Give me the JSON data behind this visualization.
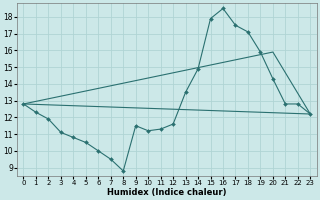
{
  "xlabel": "Humidex (Indice chaleur)",
  "background_color": "#cce8e8",
  "grid_color": "#b0d4d4",
  "line_color": "#2a7070",
  "xlim": [
    -0.5,
    23.5
  ],
  "ylim": [
    8.5,
    18.8
  ],
  "yticks": [
    9,
    10,
    11,
    12,
    13,
    14,
    15,
    16,
    17,
    18
  ],
  "xticks": [
    0,
    1,
    2,
    3,
    4,
    5,
    6,
    7,
    8,
    9,
    10,
    11,
    12,
    13,
    14,
    15,
    16,
    17,
    18,
    19,
    20,
    21,
    22,
    23
  ],
  "line1_x": [
    0,
    1,
    2,
    3,
    4,
    5,
    6,
    7,
    8,
    9,
    10,
    11,
    12,
    13,
    14,
    15,
    16,
    17,
    18,
    19,
    20,
    21,
    22,
    23
  ],
  "line1_y": [
    12.8,
    12.3,
    11.9,
    11.1,
    10.8,
    10.5,
    10.0,
    9.5,
    8.8,
    11.5,
    11.2,
    11.3,
    11.6,
    13.5,
    14.9,
    17.9,
    18.5,
    17.5,
    17.1,
    15.9,
    14.3,
    12.8,
    12.8,
    12.2
  ],
  "line2_x": [
    0,
    23
  ],
  "line2_y": [
    12.8,
    12.2
  ],
  "line3_x": [
    0,
    20,
    23
  ],
  "line3_y": [
    12.8,
    15.9,
    12.2
  ],
  "line4_x": [
    0,
    23
  ],
  "line4_y": [
    12.8,
    12.2
  ]
}
